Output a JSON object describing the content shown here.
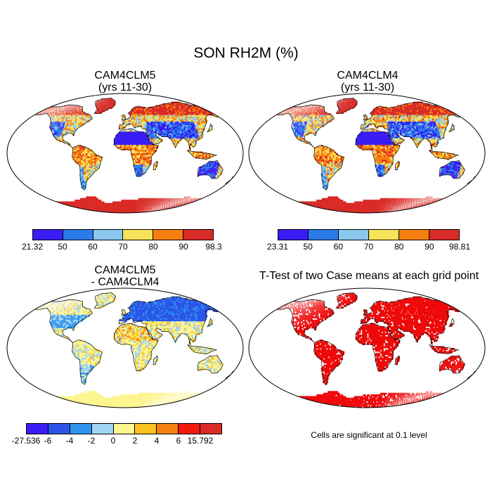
{
  "main_title": "SON RH2M (%)",
  "panels": [
    {
      "title_line1": "CAM4CLM5",
      "title_line2": "(yrs 11-30)"
    },
    {
      "title_line1": "CAM4CLM4",
      "title_line2": "(yrs 11-30)"
    },
    {
      "title_line1": "CAM4CLM5",
      "title_line2": "- CAM4CLM4"
    },
    {
      "title_line1": "T-Test of two Case means at each grid point"
    }
  ],
  "colorbars": [
    {
      "labels": [
        "21.32",
        "50",
        "60",
        "70",
        "80",
        "90",
        "98.3"
      ],
      "colors": [
        "#3a1cf5",
        "#2b7be8",
        "#8ac8ee",
        "#f8e25a",
        "#f67f11",
        "#d92b27"
      ]
    },
    {
      "labels": [
        "23.31",
        "50",
        "60",
        "70",
        "80",
        "90",
        "98.81"
      ],
      "colors": [
        "#3a1cf5",
        "#2b7be8",
        "#8ac8ee",
        "#f8e25a",
        "#f67f11",
        "#d92b27"
      ]
    },
    {
      "labels": [
        "-27.536",
        "-6",
        "-4",
        "-2",
        "0",
        "2",
        "4",
        "6",
        "15.792"
      ],
      "colors": [
        "#3a1cf5",
        "#2b55e8",
        "#2f95ef",
        "#a2d4f3",
        "#fdf58f",
        "#fcc21f",
        "#f78012",
        "#f21a0f",
        "#d92b27"
      ]
    }
  ],
  "significance_note": "Cells are significant at 0.1 level",
  "colors": {
    "significant": "#ee0a0a",
    "coast": "#000000",
    "ocean": "#ffffff"
  }
}
